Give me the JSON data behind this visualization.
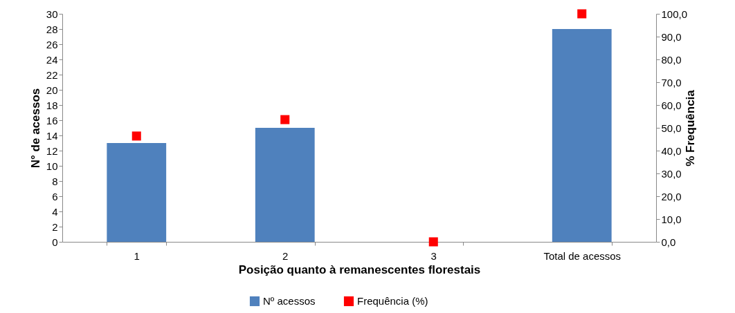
{
  "chart_data": {
    "type": "bar",
    "xlabel": "Posição quanto à remanescentes florestais",
    "ylabel": "N° de acessos",
    "y2label": "% Frequência",
    "categories": [
      "1",
      "2",
      "3",
      "Total de acessos"
    ],
    "series": [
      {
        "name": "Nº acessos",
        "color": "#4f81bd",
        "values": [
          13,
          15,
          0,
          28
        ]
      },
      {
        "name": "Frequência (%)",
        "type": "scatter",
        "axis": "y2",
        "marker": "square",
        "color": "#ff0000",
        "values": [
          46.4,
          53.6,
          0,
          100
        ]
      }
    ],
    "ylim": [
      0,
      30
    ],
    "yticks": [
      0,
      2,
      4,
      6,
      8,
      10,
      12,
      14,
      16,
      18,
      20,
      22,
      24,
      26,
      28,
      30
    ],
    "y2lim": [
      0,
      100
    ],
    "y2ticks": [
      {
        "value": 0,
        "label": "0,0"
      },
      {
        "value": 10,
        "label": "10,0"
      },
      {
        "value": 20,
        "label": "20,0"
      },
      {
        "value": 30,
        "label": "30,0"
      },
      {
        "value": 40,
        "label": "40,0"
      },
      {
        "value": 50,
        "label": "50,0"
      },
      {
        "value": 60,
        "label": "60,0"
      },
      {
        "value": 70,
        "label": "70,0"
      },
      {
        "value": 80,
        "label": "80,0"
      },
      {
        "value": 90,
        "label": "90,0"
      },
      {
        "value": 100,
        "label": "100,0"
      }
    ],
    "grid": false,
    "legend": "bottom"
  }
}
